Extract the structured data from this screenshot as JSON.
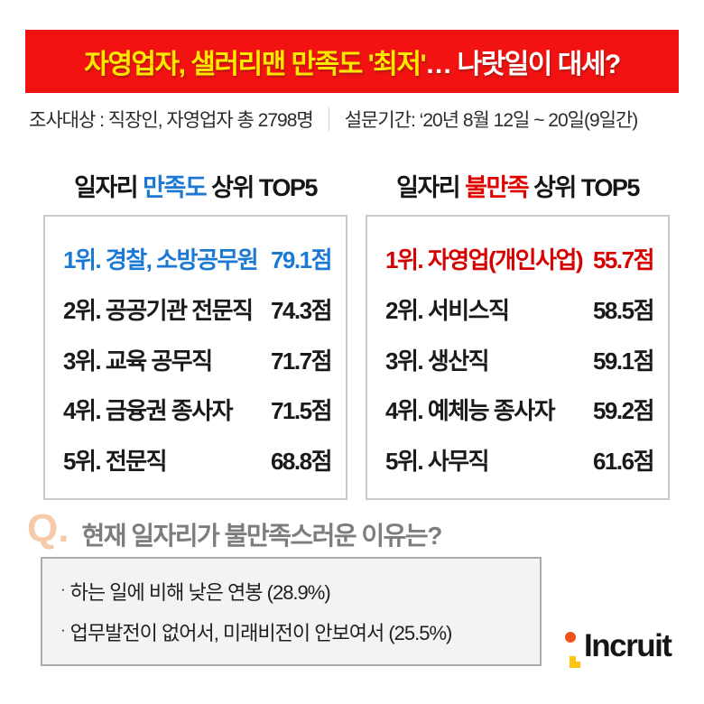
{
  "colors": {
    "banner_bg": "#f21212",
    "banner_highlight": "#ffe800",
    "banner_rest": "#ffffff",
    "satisfaction_accent": "#1b79d4",
    "dissatisfaction_accent": "#e00000",
    "rank1_satisfaction": "#1b79d4",
    "rank1_dissatisfaction": "#d50000",
    "question_mark": "#f6caa8",
    "question_text": "#7d7d7d",
    "logo_orange": "#f0521e",
    "logo_yellow": "#ffc20d"
  },
  "banner": {
    "highlight": "자영업자, 샐러리맨 만족도 '최저'",
    "rest": "… 나랏일이 대세?"
  },
  "survey_info": {
    "target": "조사대상 : 직장인, 자영업자 총 2798명",
    "period": "설문기간: ‘20년 8월 12일 ~ 20일(9일간)"
  },
  "satisfaction_table": {
    "title_prefix": "일자리 ",
    "title_keyword": "만족도",
    "title_suffix": " 상위 TOP5",
    "rows": [
      {
        "label": "1위. 경찰, 소방공무원",
        "score": "79.1점"
      },
      {
        "label": "2위. 공공기관 전문직",
        "score": "74.3점"
      },
      {
        "label": "3위. 교육 공무직",
        "score": "71.7점"
      },
      {
        "label": "4위. 금융권 종사자",
        "score": "71.5점"
      },
      {
        "label": "5위. 전문직",
        "score": "68.8점"
      }
    ]
  },
  "dissatisfaction_table": {
    "title_prefix": "일자리 ",
    "title_keyword": "불만족",
    "title_suffix": " 상위 TOP5",
    "rows": [
      {
        "label": "1위. 자영업(개인사업)",
        "score": "55.7점"
      },
      {
        "label": "2위. 서비스직",
        "score": "58.5점"
      },
      {
        "label": "3위. 생산직",
        "score": "59.1점"
      },
      {
        "label": "4위. 예체능 종사자",
        "score": "59.2점"
      },
      {
        "label": "5위. 사무직",
        "score": "61.6점"
      }
    ]
  },
  "question": {
    "mark": "Q.",
    "text": "현재 일자리가 불만족스러운 이유는?"
  },
  "reasons": {
    "bullet": "·",
    "items": [
      "하는 일에 비해 낮은 연봉 (28.9%)",
      "업무발전이 없어서, 미래비전이 안보여서 (25.5%)"
    ]
  },
  "logo": {
    "text": "Incruit"
  },
  "chart_data": [
    {
      "type": "table",
      "title": "일자리 만족도 상위 TOP5",
      "categories": [
        "경찰, 소방공무원",
        "공공기관 전문직",
        "교육 공무직",
        "금융권 종사자",
        "전문직"
      ],
      "values": [
        79.1,
        74.3,
        71.7,
        71.5,
        68.8
      ],
      "unit": "점",
      "ranks": [
        "1위",
        "2위",
        "3위",
        "4위",
        "5위"
      ]
    },
    {
      "type": "table",
      "title": "일자리 불만족 상위 TOP5",
      "categories": [
        "자영업(개인사업)",
        "서비스직",
        "생산직",
        "예체능 종사자",
        "사무직"
      ],
      "values": [
        55.7,
        58.5,
        59.1,
        59.2,
        61.6
      ],
      "unit": "점",
      "ranks": [
        "1위",
        "2위",
        "3위",
        "4위",
        "5위"
      ]
    },
    {
      "type": "table",
      "title": "현재 일자리가 불만족스러운 이유는?",
      "categories": [
        "하는 일에 비해 낮은 연봉",
        "업무발전이 없어서, 미래비전이 안보여서"
      ],
      "values": [
        28.9,
        25.5
      ],
      "unit": "%"
    }
  ]
}
